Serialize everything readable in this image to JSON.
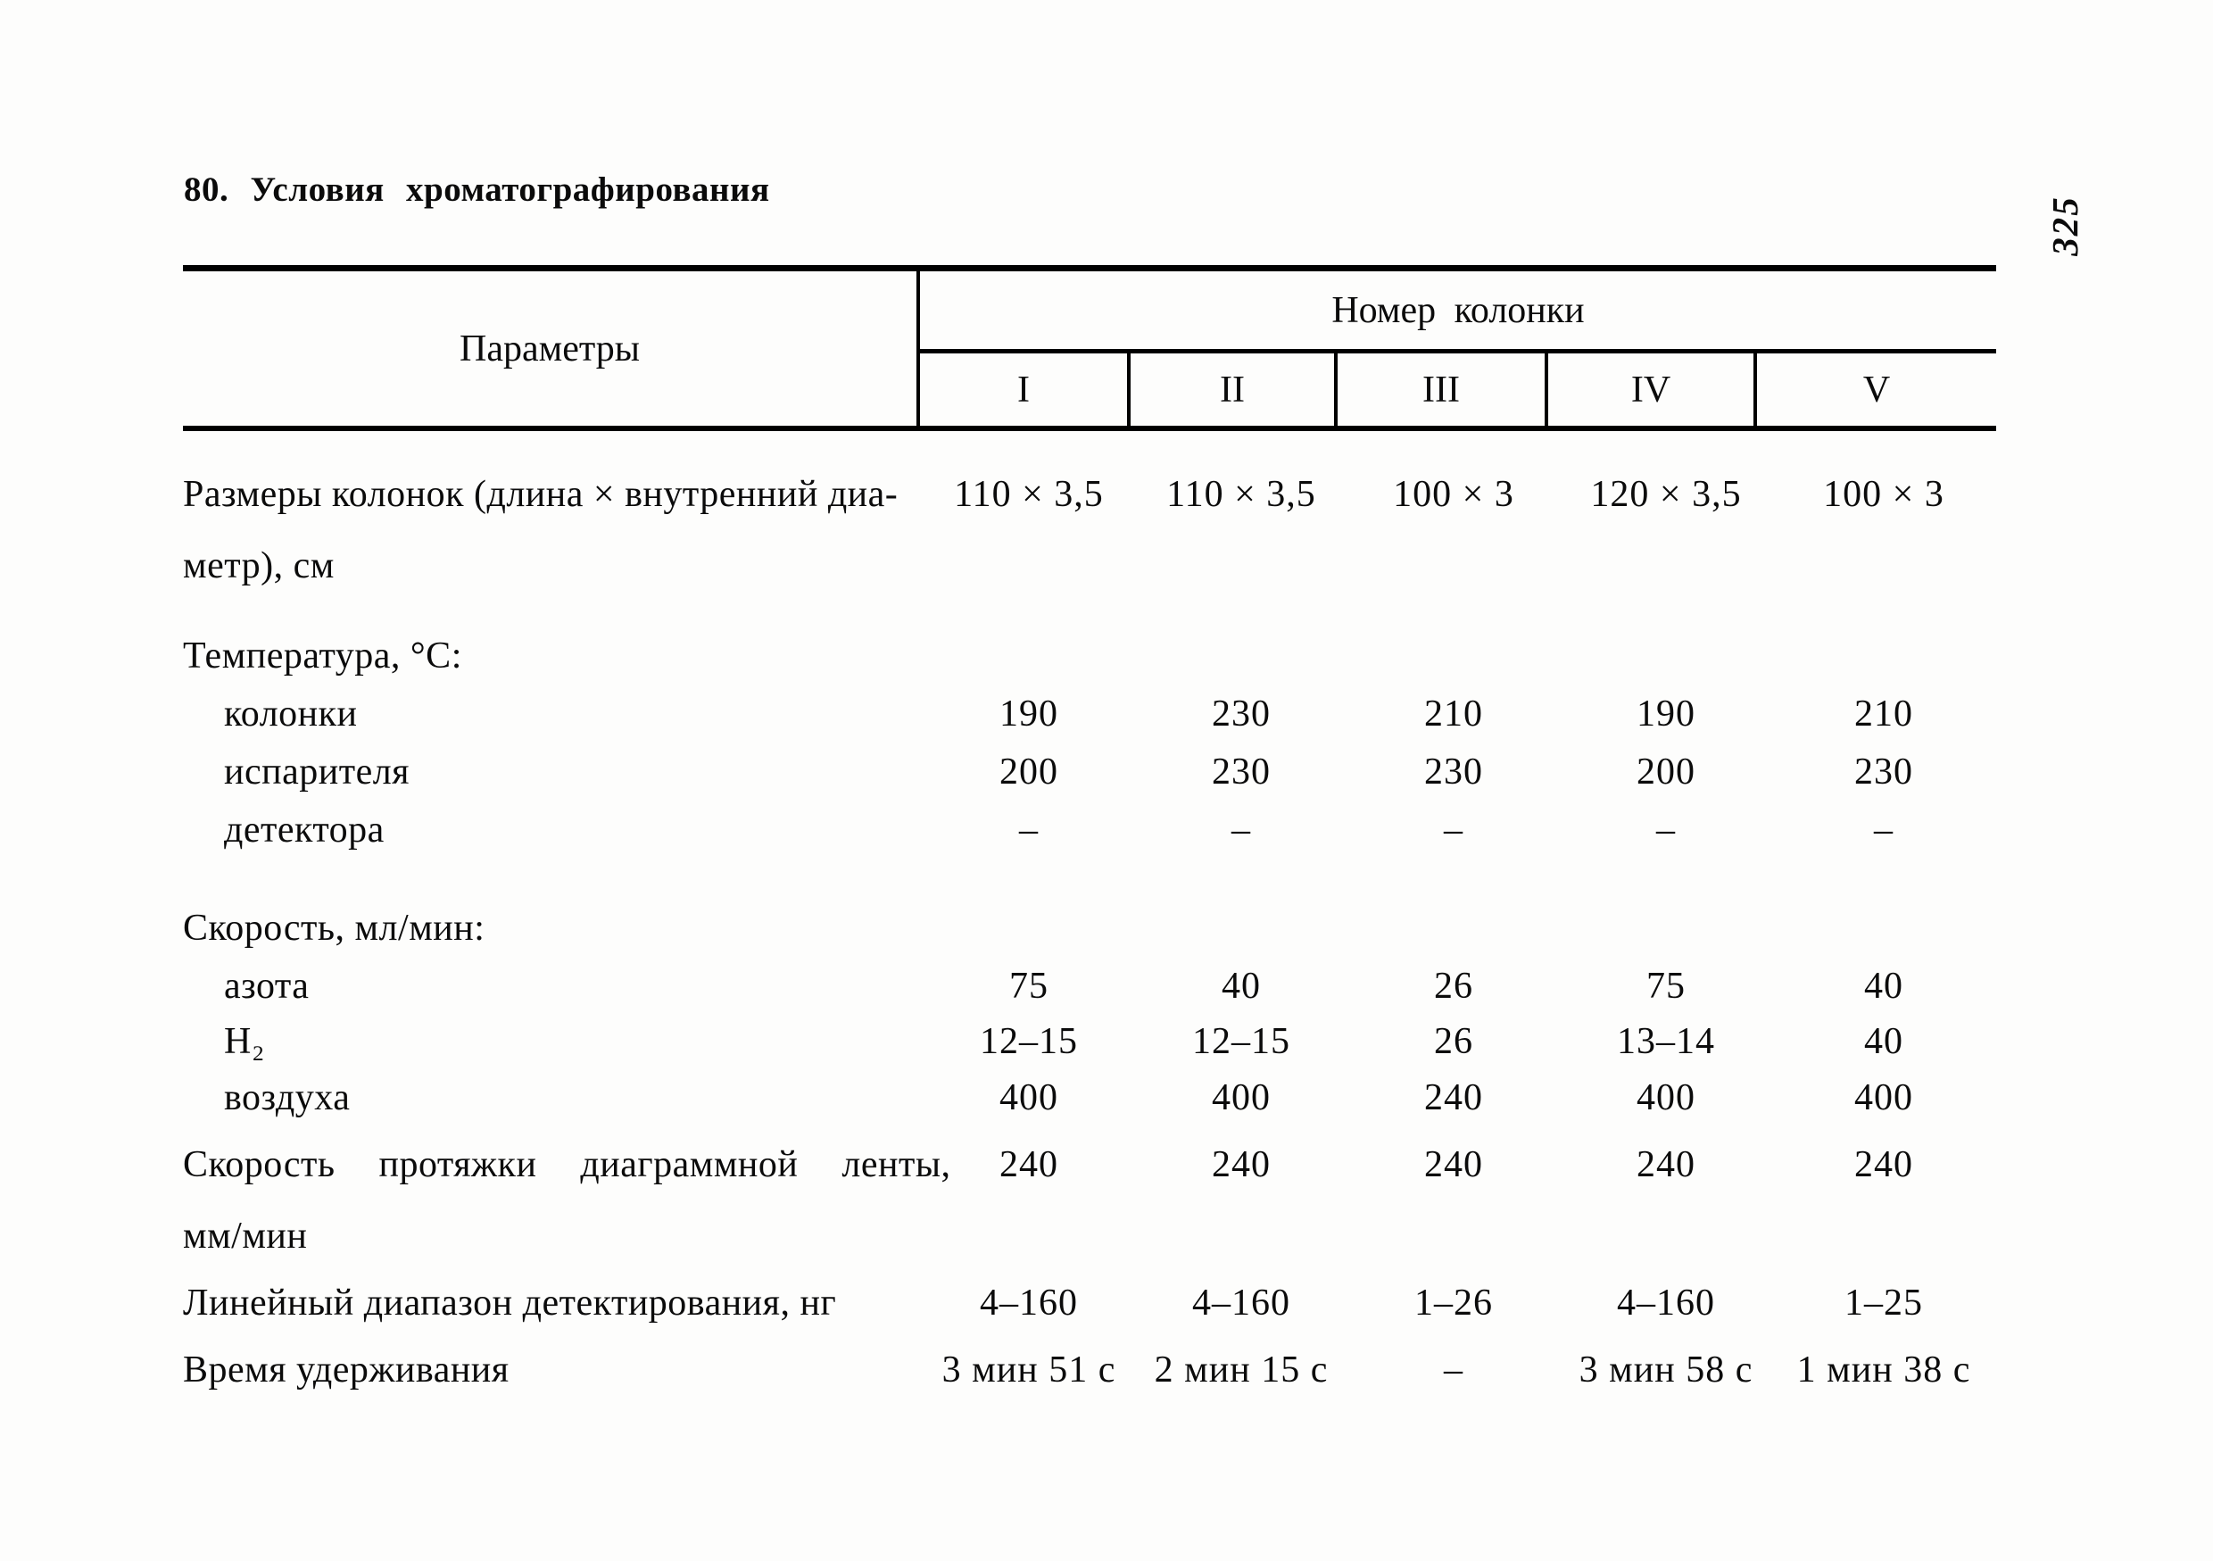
{
  "page": {
    "title": "80. Условия хроматографирования",
    "page_number": "325"
  },
  "table": {
    "header": {
      "params_label": "Параметры",
      "group_label": "Номер колонки",
      "columns": [
        "I",
        "II",
        "III",
        "IV",
        "V"
      ]
    },
    "rows": [
      {
        "label": "Размеры колонок (длина × внутренний диа-",
        "label2": "метр), см",
        "values": [
          "110 × 3,5",
          "110 × 3,5",
          "100 × 3",
          "120 × 3,5",
          "100 × 3"
        ]
      },
      {
        "label": "Температура, °С:"
      },
      {
        "label": "колонки",
        "values": [
          "190",
          "230",
          "210",
          "190",
          "210"
        ]
      },
      {
        "label": "испарителя",
        "values": [
          "200",
          "230",
          "230",
          "200",
          "230"
        ]
      },
      {
        "label": "детектора",
        "values": [
          "–",
          "–",
          "–",
          "–",
          "–"
        ]
      },
      {
        "label": "Скорость, мл/мин:"
      },
      {
        "label": "азота",
        "values": [
          "75",
          "40",
          "26",
          "75",
          "40"
        ]
      },
      {
        "label": "H₂",
        "values": [
          "12–15",
          "12–15",
          "26",
          "13–14",
          "40"
        ]
      },
      {
        "label": "воздуха",
        "values": [
          "400",
          "400",
          "240",
          "400",
          "400"
        ]
      },
      {
        "label": "Скорость протяжки диаграммной ленты,",
        "label2": "мм/мин",
        "values": [
          "240",
          "240",
          "240",
          "240",
          "240"
        ]
      },
      {
        "label": "Линейный диапазон детектирования, нг",
        "values": [
          "4–160",
          "4–160",
          "1–26",
          "4–160",
          "1–25"
        ]
      },
      {
        "label": "Время удерживания",
        "values": [
          "3 мин 51 с",
          "2 мин 15 с",
          "–",
          "3 мин 58 с",
          "1 мин 38 с"
        ]
      }
    ]
  }
}
